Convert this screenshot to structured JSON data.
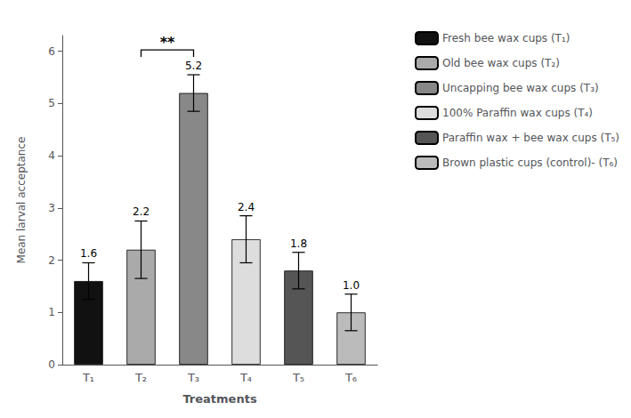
{
  "chart_data": {
    "type": "bar",
    "categories": [
      "T₁",
      "T₂",
      "T₃",
      "T₄",
      "T₅",
      "T₆"
    ],
    "values": [
      1.6,
      2.2,
      5.2,
      2.4,
      1.8,
      1.0
    ],
    "value_labels": [
      "1.6",
      "2.2",
      "5.2",
      "2.4",
      "1.8",
      "1.0"
    ],
    "errors": [
      0.35,
      0.55,
      0.35,
      0.45,
      0.35,
      0.35
    ],
    "colors": [
      "#111111",
      "#aaaaaa",
      "#888888",
      "#dddddd",
      "#555555",
      "#bbbbbb"
    ],
    "legend_labels": [
      "Fresh bee wax cups (T₁)",
      "Old bee wax cups (T₂)",
      "Uncapping bee wax cups (T₃)",
      "100% Paraffin wax cups (T₄)",
      "Paraffin wax + bee wax cups (T₅)",
      "Brown plastic cups (control)- (T₆)"
    ],
    "xlabel": "Treatments",
    "ylabel": "Mean larval acceptance",
    "ylim": [
      0,
      6.3
    ],
    "yticks": [
      0,
      1,
      2,
      3,
      4,
      5,
      6
    ],
    "grid": false,
    "data_labels": true,
    "legend": "right",
    "annotations": [
      {
        "text": "**",
        "categories": [
          "T₂",
          "T₃"
        ]
      }
    ]
  }
}
